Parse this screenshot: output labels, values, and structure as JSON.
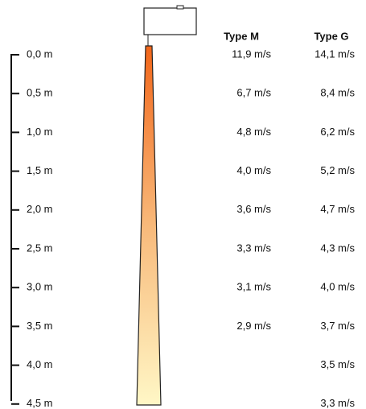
{
  "scale": {
    "labels": [
      "0,0 m",
      "0,5 m",
      "1,0 m",
      "1,5 m",
      "2,0 m",
      "2,5 m",
      "3,0 m",
      "3,5 m",
      "4,0 m",
      "4,5 m"
    ]
  },
  "columns": [
    {
      "header": "Type M",
      "values": [
        "11,9 m/s",
        "6,7 m/s",
        "4,8 m/s",
        "4,0 m/s",
        "3,6 m/s",
        "3,3 m/s",
        "3,1 m/s",
        "2,9 m/s"
      ]
    },
    {
      "header": "Type G",
      "values": [
        "14,1 m/s",
        "8,4 m/s",
        "6,2 m/s",
        "5,2 m/s",
        "4,7 m/s",
        "4,3 m/s",
        "4,0 m/s",
        "3,7 m/s",
        "3,5 m/s",
        "3,3 m/s"
      ]
    }
  ]
}
